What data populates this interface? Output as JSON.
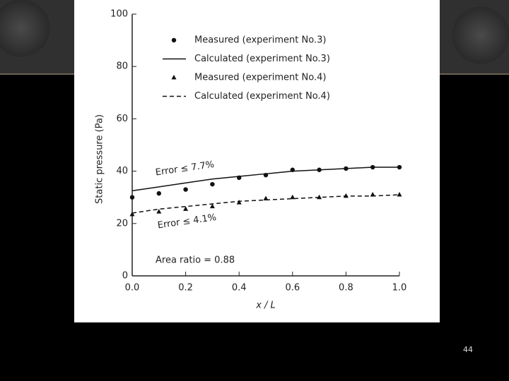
{
  "chart_data": {
    "type": "line",
    "x_label": "x / L",
    "y_label": "Static pressure (Pa)",
    "x": [
      0,
      0.1,
      0.2,
      0.3,
      0.4,
      0.5,
      0.6,
      0.7,
      0.8,
      0.9,
      1
    ],
    "series": [
      {
        "name": "Measured (experiment No.3)",
        "color": "#111111",
        "marker": "circle",
        "line": false,
        "values": [
          30,
          31.5,
          33,
          35,
          37.5,
          38.5,
          40.5,
          40.5,
          41,
          41.5,
          41.5
        ]
      },
      {
        "name": "Calculated (experiment No.3)",
        "color": "#111111",
        "marker": null,
        "line": "solid",
        "values": [
          32.5,
          34,
          35.5,
          37,
          38,
          39,
          40,
          40.5,
          41,
          41.5,
          41.5
        ]
      },
      {
        "name": "Measured (experiment No.4)",
        "color": "#111111",
        "marker": "triangle",
        "line": false,
        "values": [
          23.5,
          24.5,
          25.5,
          26.5,
          28,
          29.5,
          30,
          30,
          30.5,
          31,
          31
        ]
      },
      {
        "name": "Calculated (experiment No.4)",
        "color": "#111111",
        "marker": null,
        "line": "dashed",
        "values": [
          24,
          25.5,
          26.5,
          27.5,
          28.5,
          29,
          29.5,
          30,
          30.5,
          30.5,
          31
        ]
      }
    ],
    "annotations": [
      "Error ≤ 7.7%",
      "Error ≤ 4.1%",
      "Area ratio = 0.88"
    ],
    "xlim": [
      0,
      1
    ],
    "ylim": [
      0,
      100
    ],
    "xticks": [
      {
        "value": 0,
        "label": "0.0"
      },
      0.2,
      0.4,
      0.6,
      0.8,
      {
        "value": 1,
        "label": "1.0"
      }
    ],
    "yticks": [
      0,
      20,
      40,
      60,
      80,
      100
    ],
    "legend": "upper-right",
    "grid": false
  },
  "page_number": 44
}
